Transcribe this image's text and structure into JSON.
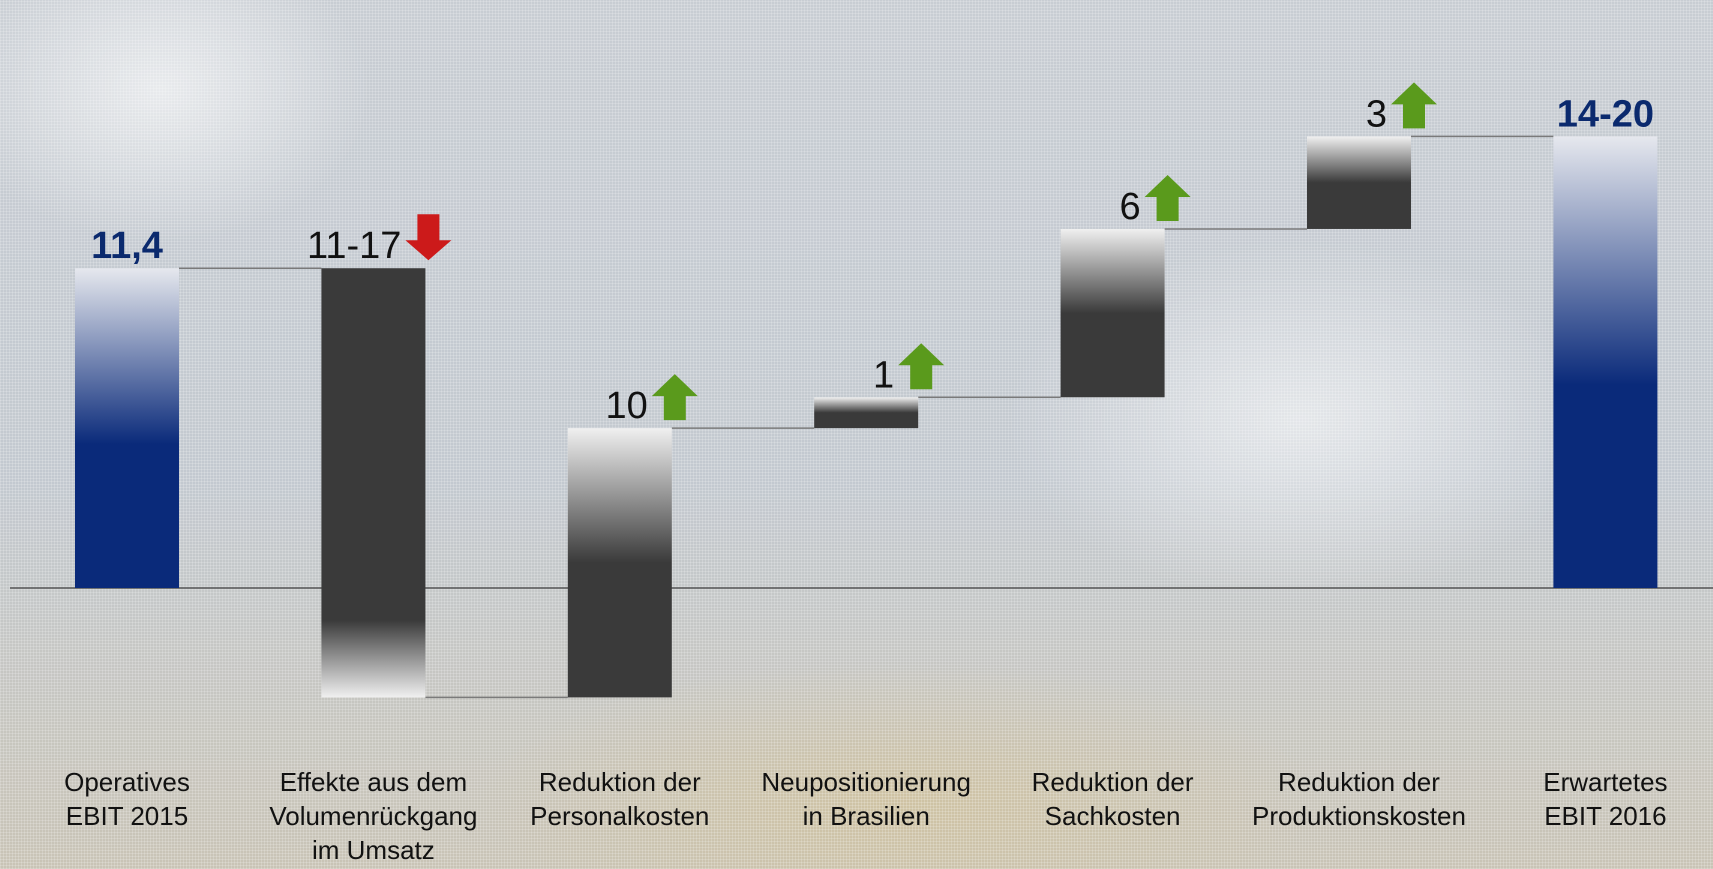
{
  "chart_data": {
    "type": "waterfall",
    "title": "",
    "xlabel": "",
    "ylabel": "",
    "ylim": [
      -12,
      26
    ],
    "grid": false,
    "colors": {
      "total_top": "#e6e8ee",
      "total_bottom": "#0a2a7a",
      "delta_dark": "#3a3a3a",
      "delta_light": "#f0f0f0",
      "arrow_up": "#5a9a1c",
      "arrow_down": "#cc1a1a",
      "connector": "#7a7a7a",
      "zero_line": "#555555"
    },
    "steps": [
      {
        "label_lines": [
          "Operatives",
          "EBIT 2015"
        ],
        "kind": "total",
        "base": 0,
        "top": 11.4,
        "value_label": "11,4",
        "arrow": ""
      },
      {
        "label_lines": [
          "Effekte aus dem",
          "Volumenrückgang",
          "im Umsatz"
        ],
        "kind": "decrease",
        "base": 11.4,
        "top": -3.9,
        "value_label": "11-17",
        "arrow": "down"
      },
      {
        "label_lines": [
          "Reduktion der",
          "Personalkosten"
        ],
        "kind": "increase",
        "base": -3.9,
        "top": 5.7,
        "value_label": "10",
        "arrow": "up"
      },
      {
        "label_lines": [
          "Neupositionierung",
          "in Brasilien"
        ],
        "kind": "increase",
        "base": 5.7,
        "top": 6.8,
        "value_label": "1",
        "arrow": "up"
      },
      {
        "label_lines": [
          "Reduktion der",
          "Sachkosten"
        ],
        "kind": "increase",
        "base": 6.8,
        "top": 12.8,
        "value_label": "6",
        "arrow": "up"
      },
      {
        "label_lines": [
          "Reduktion der",
          "Produktionskosten"
        ],
        "kind": "increase",
        "base": 12.8,
        "top": 16.1,
        "value_label": "3",
        "arrow": "up"
      },
      {
        "label_lines": [
          "Erwartetes",
          "EBIT 2016"
        ],
        "kind": "total",
        "base": 0,
        "top": 16.1,
        "value_label": "14-20",
        "arrow": ""
      }
    ]
  }
}
